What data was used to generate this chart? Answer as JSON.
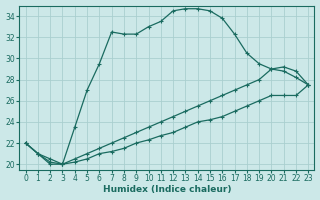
{
  "xlabel": "Humidex (Indice chaleur)",
  "bg_color": "#cce8e8",
  "grid_color": "#b0d0d0",
  "line_color": "#1a6b60",
  "xlim": [
    -0.5,
    23.5
  ],
  "ylim": [
    19.5,
    35.0
  ],
  "yticks": [
    20,
    22,
    24,
    26,
    28,
    30,
    32,
    34
  ],
  "xticks": [
    0,
    1,
    2,
    3,
    4,
    5,
    6,
    7,
    8,
    9,
    10,
    11,
    12,
    13,
    14,
    15,
    16,
    17,
    18,
    19,
    20,
    21,
    22,
    23
  ],
  "line1_x": [
    0,
    1,
    2,
    3,
    4,
    5,
    6,
    7,
    8,
    9,
    10,
    11,
    12,
    13,
    14,
    15,
    16,
    17,
    18,
    19,
    20,
    21,
    22,
    23
  ],
  "line1_y": [
    22.0,
    21.0,
    20.0,
    20.0,
    23.5,
    27.0,
    29.5,
    32.5,
    32.3,
    32.3,
    33.0,
    33.5,
    34.5,
    34.7,
    34.7,
    34.5,
    33.8,
    32.3,
    30.5,
    29.5,
    29.0,
    28.8,
    28.2,
    27.5
  ],
  "line2_x": [
    0,
    1,
    2,
    3,
    4,
    5,
    6,
    7,
    8,
    9,
    10,
    11,
    12,
    13,
    14,
    15,
    16,
    17,
    18,
    19,
    20,
    21,
    22,
    23
  ],
  "line2_y": [
    22.0,
    21.0,
    20.5,
    20.0,
    20.5,
    21.0,
    21.5,
    22.0,
    22.5,
    23.0,
    23.5,
    24.0,
    24.5,
    25.0,
    25.5,
    26.0,
    26.5,
    27.0,
    27.5,
    28.0,
    29.0,
    29.2,
    28.8,
    27.5
  ],
  "line3_x": [
    0,
    1,
    2,
    3,
    4,
    5,
    6,
    7,
    8,
    9,
    10,
    11,
    12,
    13,
    14,
    15,
    16,
    17,
    18,
    19,
    20,
    21,
    22,
    23
  ],
  "line3_y": [
    22.0,
    21.0,
    20.2,
    20.0,
    20.2,
    20.5,
    21.0,
    21.2,
    21.5,
    22.0,
    22.3,
    22.7,
    23.0,
    23.5,
    24.0,
    24.2,
    24.5,
    25.0,
    25.5,
    26.0,
    26.5,
    26.5,
    26.5,
    27.5
  ]
}
